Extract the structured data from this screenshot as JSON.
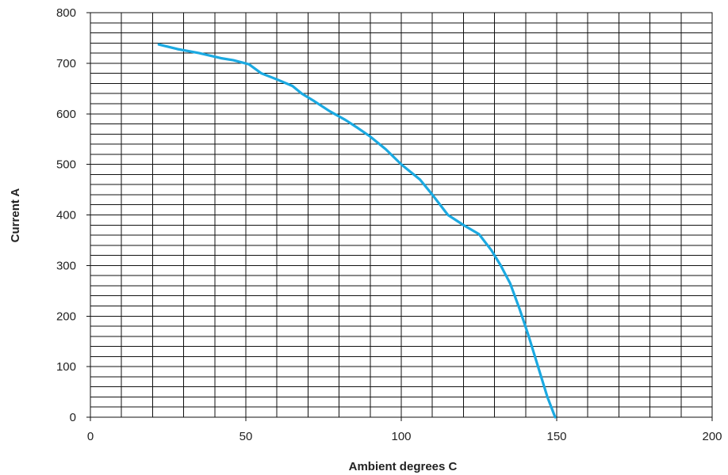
{
  "chart_data": {
    "type": "line",
    "title": "",
    "xlabel": "Ambient degrees C",
    "ylabel": "Current A",
    "xlim": [
      0,
      200
    ],
    "ylim": [
      0,
      800
    ],
    "x_ticks": [
      0,
      50,
      100,
      150,
      200
    ],
    "y_ticks": [
      0,
      100,
      200,
      300,
      400,
      500,
      600,
      700,
      800
    ],
    "x_tick_labels": [
      "0",
      "50",
      "100",
      "150",
      "200"
    ],
    "y_tick_labels": [
      "0",
      "100",
      "200",
      "300",
      "400",
      "500",
      "600",
      "700",
      "800"
    ],
    "x_minor_step": 10,
    "y_minor_step": 20,
    "grid": true,
    "legend": "none",
    "series": [
      {
        "color": "#1ba9e1",
        "x": [
          22,
          28,
          35,
          42,
          46,
          51,
          55,
          60,
          65,
          68,
          72,
          77,
          82,
          86,
          90,
          95,
          100,
          106,
          110,
          115,
          120,
          125,
          129,
          132,
          135,
          138,
          141,
          144,
          147,
          149.5
        ],
        "y": [
          737,
          728,
          720,
          710,
          706,
          698,
          680,
          668,
          655,
          640,
          625,
          605,
          588,
          572,
          555,
          530,
          500,
          470,
          440,
          400,
          380,
          362,
          330,
          300,
          265,
          215,
          160,
          100,
          40,
          0
        ]
      }
    ]
  }
}
